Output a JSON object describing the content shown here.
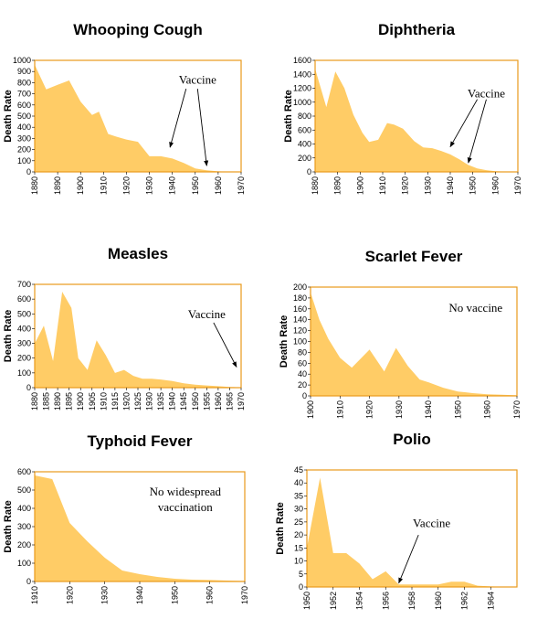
{
  "chart_data": [
    {
      "type": "area",
      "title": "Whooping Cough",
      "ylabel": "Death Rate",
      "xlabel": "",
      "xlim": [
        1880,
        1970
      ],
      "ylim": [
        0,
        1000
      ],
      "yticks": [
        0,
        100,
        200,
        300,
        400,
        500,
        600,
        700,
        800,
        900,
        1000
      ],
      "xticks": [
        1880,
        1890,
        1900,
        1910,
        1920,
        1930,
        1940,
        1950,
        1960,
        1970
      ],
      "x": [
        1880,
        1885,
        1890,
        1895,
        1900,
        1905,
        1908,
        1912,
        1915,
        1920,
        1925,
        1930,
        1935,
        1940,
        1945,
        1950,
        1955,
        1960,
        1965,
        1970
      ],
      "values": [
        960,
        740,
        780,
        820,
        630,
        510,
        540,
        340,
        320,
        290,
        270,
        140,
        140,
        120,
        80,
        30,
        15,
        5,
        2,
        1
      ],
      "annotation": {
        "text": "Vaccine",
        "text_x": 1951,
        "text_y": 790,
        "arrows": [
          [
            1946,
            745,
            1939,
            220
          ],
          [
            1951,
            745,
            1955,
            55
          ]
        ]
      }
    },
    {
      "type": "area",
      "title": "Diphtheria",
      "ylabel": "Death Rate",
      "xlabel": "",
      "xlim": [
        1880,
        1970
      ],
      "ylim": [
        0,
        1600
      ],
      "yticks": [
        0,
        200,
        400,
        600,
        800,
        1000,
        1200,
        1400,
        1600
      ],
      "xticks": [
        1880,
        1890,
        1900,
        1910,
        1920,
        1930,
        1940,
        1950,
        1960,
        1970
      ],
      "x": [
        1880,
        1885,
        1889,
        1893,
        1897,
        1901,
        1904,
        1908,
        1912,
        1915,
        1919,
        1924,
        1928,
        1932,
        1936,
        1940,
        1944,
        1948,
        1952,
        1956,
        1960,
        1965,
        1970
      ],
      "values": [
        1480,
        930,
        1440,
        1200,
        820,
        560,
        430,
        460,
        700,
        680,
        620,
        440,
        350,
        340,
        300,
        250,
        180,
        100,
        50,
        25,
        10,
        3,
        1
      ],
      "annotation": {
        "text": "Vaccine",
        "text_x": 1956,
        "text_y": 1070,
        "arrows": [
          [
            1952,
            1040,
            1940,
            360
          ],
          [
            1956,
            1040,
            1948,
            130
          ]
        ]
      }
    },
    {
      "type": "area",
      "title": "Measles",
      "ylabel": "Death Rate",
      "xlabel": "",
      "xlim": [
        1880,
        1970
      ],
      "ylim": [
        0,
        700
      ],
      "yticks": [
        0,
        100,
        200,
        300,
        400,
        500,
        600,
        700
      ],
      "xticks": [
        1880,
        1885,
        1890,
        1895,
        1900,
        1905,
        1910,
        1915,
        1920,
        1925,
        1930,
        1935,
        1940,
        1945,
        1950,
        1955,
        1960,
        1965,
        1970
      ],
      "x": [
        1880,
        1884,
        1888,
        1892,
        1896,
        1899,
        1903,
        1907,
        1911,
        1915,
        1919,
        1923,
        1927,
        1931,
        1935,
        1940,
        1945,
        1950,
        1955,
        1960,
        1965,
        1970
      ],
      "values": [
        300,
        420,
        180,
        650,
        540,
        200,
        120,
        320,
        220,
        100,
        120,
        80,
        60,
        60,
        55,
        45,
        30,
        20,
        15,
        10,
        5,
        2
      ],
      "annotation": {
        "text": "Vaccine",
        "text_x": 1955,
        "text_y": 470,
        "arrows": [
          [
            1958,
            440,
            1968,
            140
          ]
        ]
      }
    },
    {
      "type": "area",
      "title": "Scarlet Fever",
      "ylabel": "Death Rate",
      "xlabel": "",
      "xlim": [
        1900,
        1970
      ],
      "ylim": [
        0,
        200
      ],
      "yticks": [
        0,
        20,
        40,
        60,
        80,
        100,
        120,
        140,
        160,
        180,
        200
      ],
      "xticks": [
        1900,
        1910,
        1920,
        1930,
        1940,
        1950,
        1960,
        1970
      ],
      "x": [
        1900,
        1903,
        1906,
        1910,
        1914,
        1920,
        1925,
        1929,
        1933,
        1937,
        1940,
        1945,
        1950,
        1955,
        1960,
        1965,
        1970
      ],
      "values": [
        190,
        140,
        105,
        70,
        52,
        85,
        45,
        88,
        55,
        30,
        25,
        15,
        8,
        5,
        3,
        2,
        1
      ],
      "annotation": {
        "text": "No vaccine",
        "text_x": 1956,
        "text_y": 155,
        "arrows": []
      }
    },
    {
      "type": "area",
      "title": "Typhoid Fever",
      "ylabel": "Death Rate",
      "xlabel": "",
      "xlim": [
        1910,
        1970
      ],
      "ylim": [
        0,
        600
      ],
      "yticks": [
        0,
        100,
        200,
        300,
        400,
        500,
        600
      ],
      "xticks": [
        1910,
        1920,
        1930,
        1940,
        1950,
        1960,
        1970
      ],
      "x": [
        1910,
        1915,
        1920,
        1925,
        1930,
        1935,
        1940,
        1945,
        1950,
        1955,
        1960,
        1965,
        1970
      ],
      "values": [
        580,
        560,
        320,
        220,
        130,
        60,
        40,
        25,
        15,
        10,
        8,
        5,
        3
      ],
      "annotation": {
        "text": "No widespread",
        "text2": "vaccination",
        "text_x": 1953,
        "text_y": 470,
        "arrows": []
      }
    },
    {
      "type": "area",
      "title": "Polio",
      "ylabel": "Death Rate",
      "xlabel": "",
      "xlim": [
        1950,
        1966
      ],
      "ylim": [
        0,
        45
      ],
      "yticks": [
        0,
        5,
        10,
        15,
        20,
        25,
        30,
        35,
        40,
        45
      ],
      "xticks": [
        1950,
        1952,
        1954,
        1956,
        1958,
        1960,
        1962,
        1964
      ],
      "x": [
        1950,
        1951,
        1952,
        1953,
        1954,
        1955,
        1956,
        1957,
        1958,
        1959,
        1960,
        1961,
        1962,
        1963,
        1964,
        1965,
        1966
      ],
      "values": [
        15,
        42,
        13,
        13,
        9,
        3,
        6,
        1,
        1,
        1,
        1,
        2,
        2,
        0.5,
        0.2,
        0.1,
        0
      ],
      "annotation": {
        "text": "Vaccine",
        "text_x": 1959.5,
        "text_y": 23,
        "arrows": [
          [
            1958.5,
            20,
            1957,
            1.5
          ]
        ]
      }
    }
  ]
}
